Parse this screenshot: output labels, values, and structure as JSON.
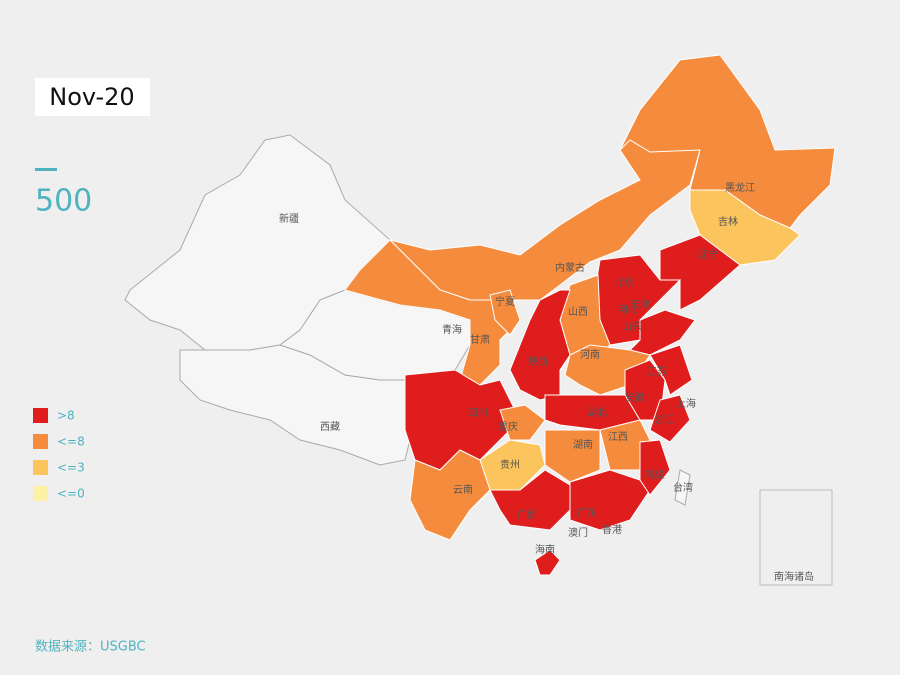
{
  "date_label": "Nov-20",
  "counter": "500",
  "legend": [
    {
      "label": ">8",
      "color": "#e01d1d"
    },
    {
      "label": "<=8",
      "color": "#f58b3c"
    },
    {
      "label": "<=3",
      "color": "#fcc45c"
    },
    {
      "label": "<=0",
      "color": "#fdf1a8"
    }
  ],
  "source": "数据来源：USGBC",
  "regions": [
    {
      "name": "新疆",
      "color": "#f6f6f6"
    },
    {
      "name": "西藏",
      "color": "#f6f6f6"
    },
    {
      "name": "青海",
      "color": "#f6f6f6"
    },
    {
      "name": "内蒙古",
      "color": "#f58b3c"
    },
    {
      "name": "黑龙江",
      "color": "#f58b3c"
    },
    {
      "name": "甘肃",
      "color": "#f58b3c"
    },
    {
      "name": "吉林",
      "color": "#fcc45c"
    },
    {
      "name": "辽宁",
      "color": "#e01d1d"
    },
    {
      "name": "河北",
      "color": "#e01d1d"
    },
    {
      "name": "山西",
      "color": "#f58b3c"
    },
    {
      "name": "宁夏",
      "color": "#f58b3c"
    },
    {
      "name": "陕西",
      "color": "#e01d1d"
    },
    {
      "name": "山东",
      "color": "#e01d1d"
    },
    {
      "name": "河南",
      "color": "#f58b3c"
    },
    {
      "name": "四川",
      "color": "#e01d1d"
    },
    {
      "name": "重庆",
      "color": "#f58b3c"
    },
    {
      "name": "湖北",
      "color": "#e01d1d"
    },
    {
      "name": "安徽",
      "color": "#e01d1d"
    },
    {
      "name": "江苏",
      "color": "#e01d1d"
    },
    {
      "name": "浙江",
      "color": "#e01d1d"
    },
    {
      "name": "湖南",
      "color": "#f58b3c"
    },
    {
      "name": "江西",
      "color": "#f58b3c"
    },
    {
      "name": "贵州",
      "color": "#fcc45c"
    },
    {
      "name": "云南",
      "color": "#f58b3c"
    },
    {
      "name": "广西",
      "color": "#e01d1d"
    },
    {
      "name": "广东",
      "color": "#e01d1d"
    },
    {
      "name": "福建",
      "color": "#e01d1d"
    },
    {
      "name": "海南",
      "color": "#e01d1d"
    },
    {
      "name": "台湾",
      "color": "#f6f6f6"
    }
  ],
  "extra_labels": [
    "北京",
    "天津",
    "上海",
    "香港",
    "澳门",
    "南海诸岛"
  ]
}
